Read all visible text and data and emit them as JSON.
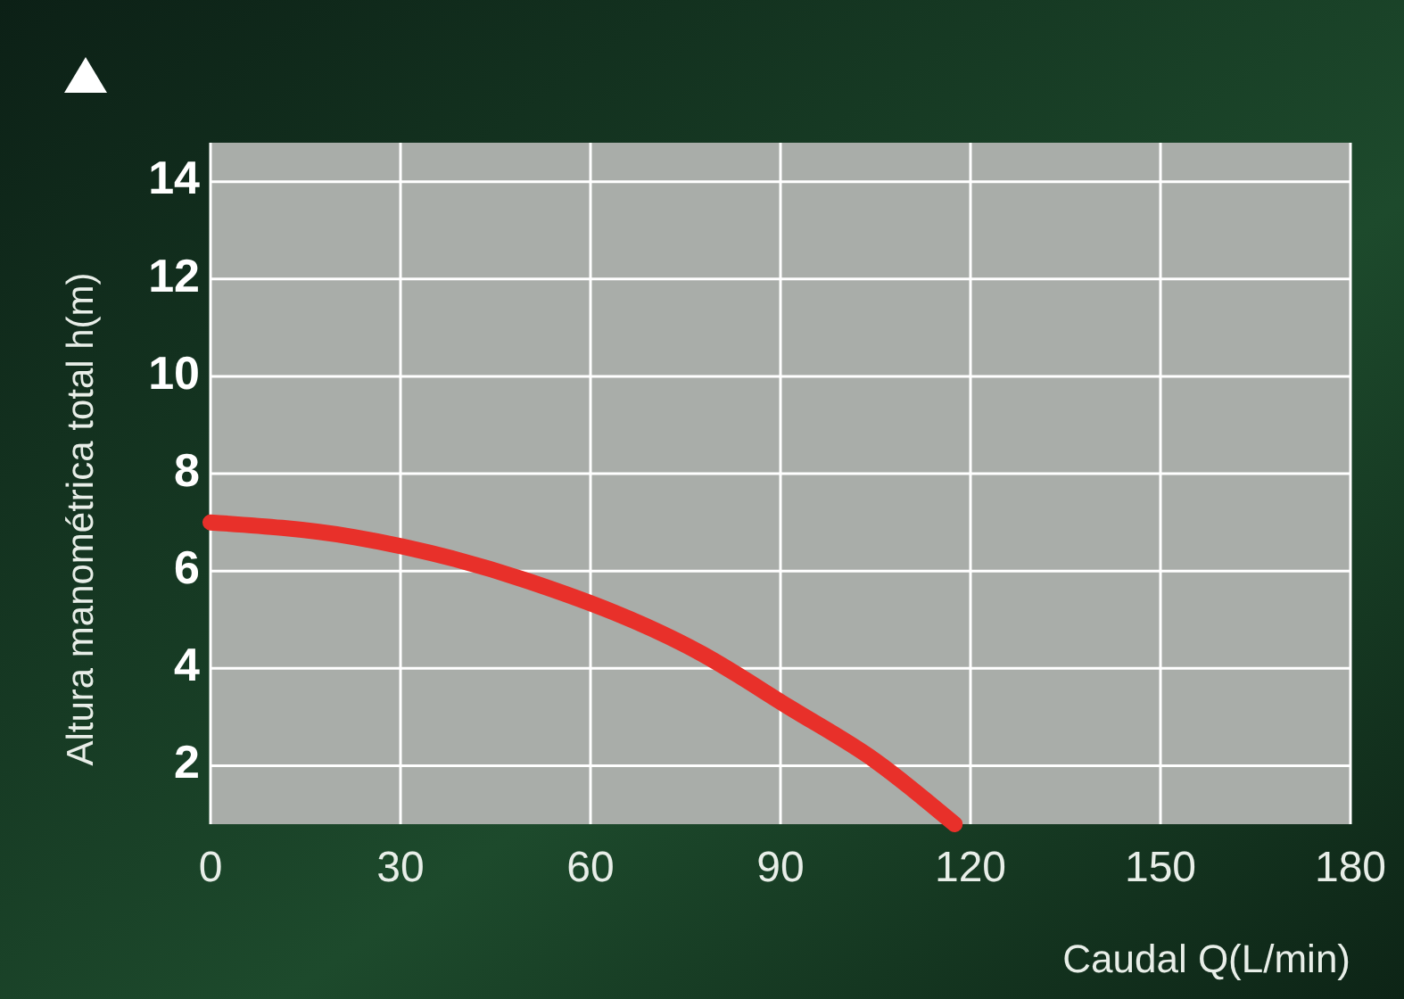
{
  "chart_data": {
    "type": "line",
    "xlabel": "Caudal Q(L/min)",
    "ylabel": "Altura manométrica total h(m)",
    "x": [
      0,
      22.6,
      50,
      77.6,
      91.4,
      105,
      117.5
    ],
    "series": [
      {
        "color": "#e8302a",
        "values": [
          7.0,
          6.7,
          5.8,
          4.3,
          3.2,
          2.1,
          0.8
        ]
      }
    ],
    "xlim": [
      0,
      180
    ],
    "xticks": [
      0,
      30,
      60,
      90,
      120,
      150,
      180
    ],
    "ylim": [
      0.8,
      14.8
    ],
    "yticks": [
      2,
      4,
      6,
      8,
      10,
      12,
      14
    ],
    "grid": true,
    "line_style": "solid",
    "marker": "none"
  }
}
